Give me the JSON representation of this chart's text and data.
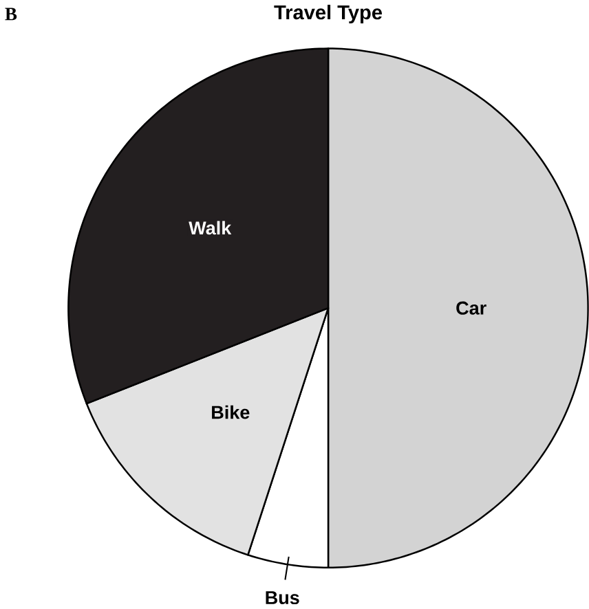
{
  "chart_data": {
    "type": "pie",
    "title": "Travel Type",
    "categories": [
      "Car",
      "Bus",
      "Bike",
      "Walk"
    ],
    "values": [
      50,
      5,
      14,
      31
    ],
    "colors": [
      "#d3d3d3",
      "#ffffff",
      "#e2e2e2",
      "#231f20"
    ],
    "annotations": [
      "B"
    ]
  }
}
